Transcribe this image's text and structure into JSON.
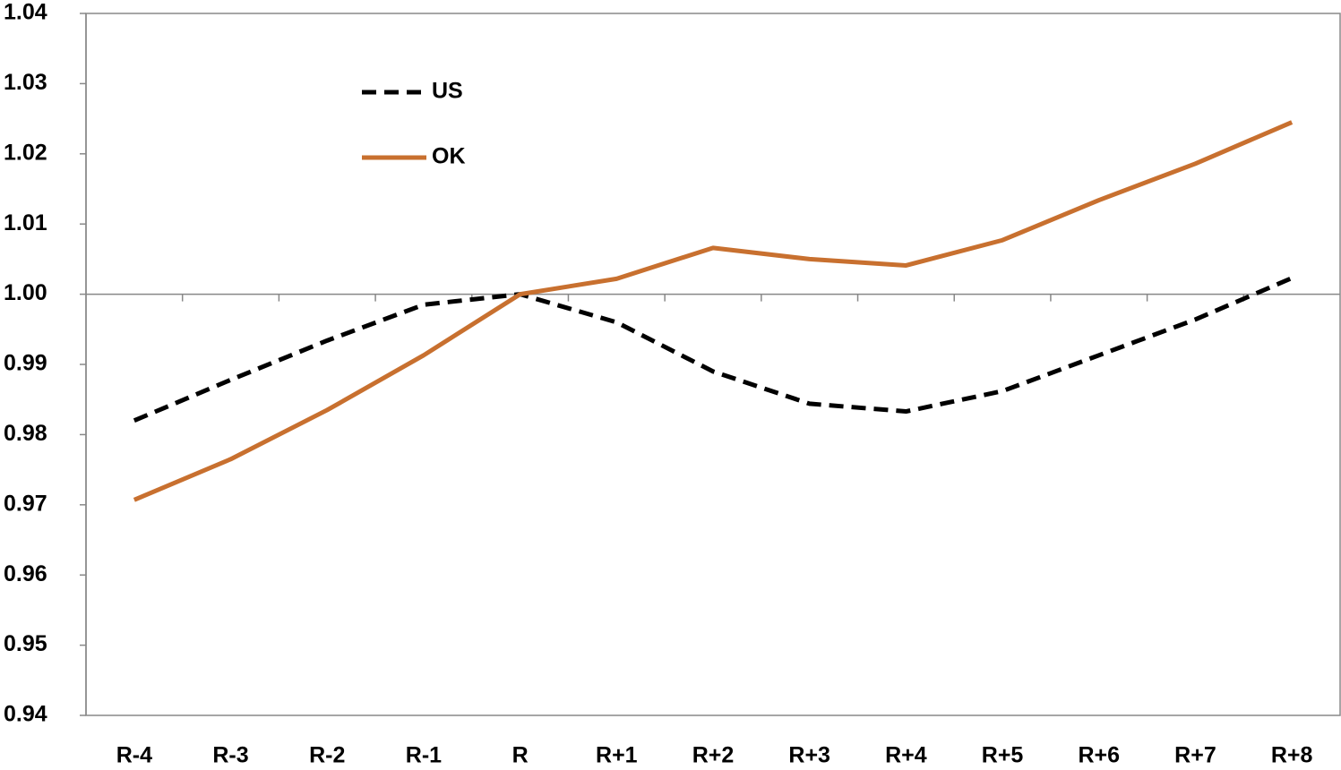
{
  "chart_data": {
    "type": "line",
    "categories": [
      "R-4",
      "R-3",
      "R-2",
      "R-1",
      "R",
      "R+1",
      "R+2",
      "R+3",
      "R+4",
      "R+5",
      "R+6",
      "R+7",
      "R+8"
    ],
    "series": [
      {
        "name": "US",
        "color": "#000000",
        "dashed": true,
        "values": [
          0.982,
          0.9878,
          0.9934,
          0.9985,
          1.0,
          0.996,
          0.989,
          0.9844,
          0.9833,
          0.9862,
          0.9913,
          0.9964,
          1.0023
        ]
      },
      {
        "name": "OK",
        "color": "#c8702f",
        "dashed": false,
        "values": [
          0.9707,
          0.9765,
          0.9835,
          0.9913,
          1.0,
          1.0022,
          1.0066,
          1.005,
          1.0041,
          1.0077,
          1.0134,
          1.0186,
          1.0245
        ]
      }
    ],
    "ylim": [
      0.94,
      1.04
    ],
    "yticks": [
      0.94,
      0.95,
      0.96,
      0.97,
      0.98,
      0.99,
      {
        "value": 1,
        "label": "1.00"
      },
      1.01,
      1.02,
      1.03,
      1.04
    ],
    "x_axis_at": 1,
    "grid": false,
    "legend": "upper-left"
  }
}
